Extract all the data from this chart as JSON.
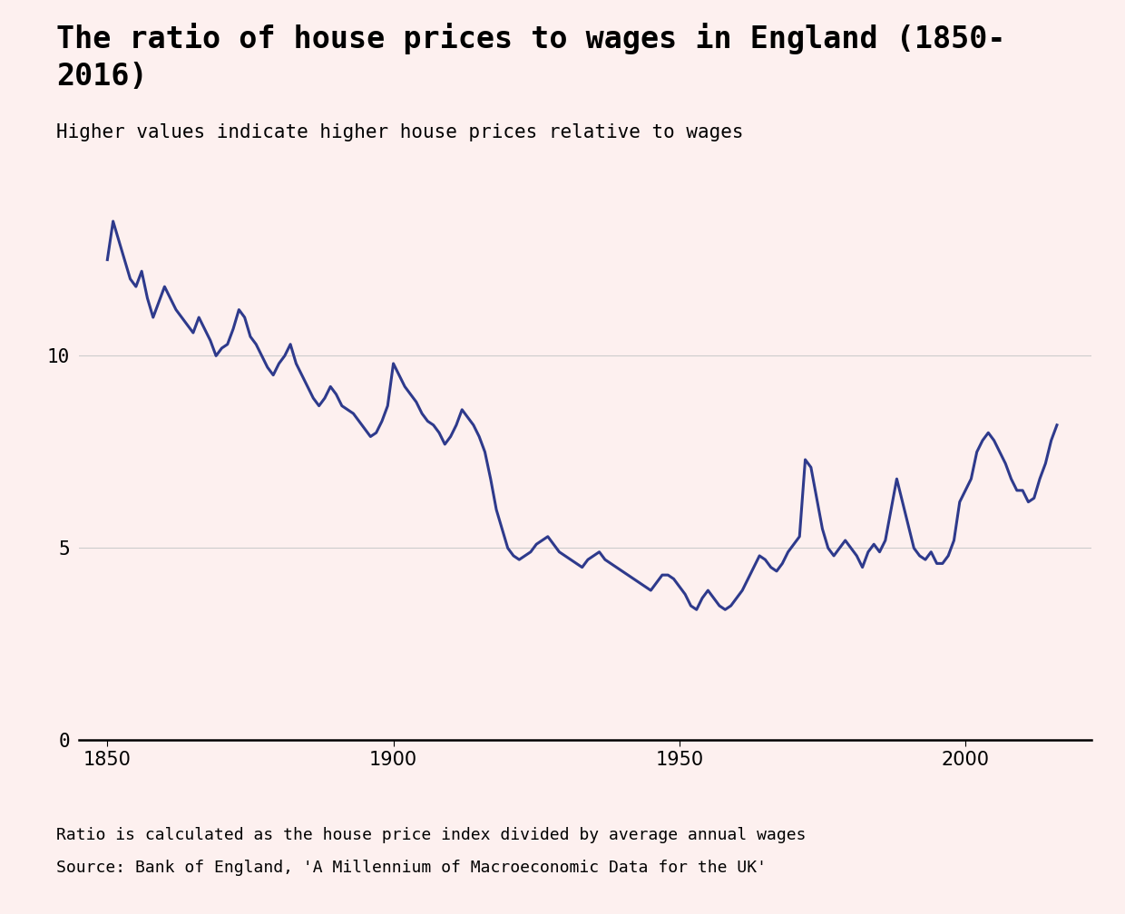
{
  "title": "The ratio of house prices to wages in England (1850-\n2016)",
  "subtitle": "Higher values indicate higher house prices relative to wages",
  "footnote1": "Ratio is calculated as the house price index divided by average annual wages",
  "footnote2": "Source: Bank of England, 'A Millennium of Macroeconomic Data for the UK'",
  "line_color": "#2E3A8C",
  "background_color": "#FDF0EF",
  "grid_color": "#CCCCCC",
  "title_fontsize": 24,
  "subtitle_fontsize": 15,
  "footnote_fontsize": 13,
  "tick_fontsize": 15,
  "line_width": 2.2,
  "xlim": [
    1845,
    2022
  ],
  "ylim": [
    0,
    14.5
  ],
  "yticks": [
    0,
    5,
    10
  ],
  "xticks": [
    1850,
    1900,
    1950,
    2000
  ],
  "years": [
    1850,
    1851,
    1852,
    1853,
    1854,
    1855,
    1856,
    1857,
    1858,
    1859,
    1860,
    1861,
    1862,
    1863,
    1864,
    1865,
    1866,
    1867,
    1868,
    1869,
    1870,
    1871,
    1872,
    1873,
    1874,
    1875,
    1876,
    1877,
    1878,
    1879,
    1880,
    1881,
    1882,
    1883,
    1884,
    1885,
    1886,
    1887,
    1888,
    1889,
    1890,
    1891,
    1892,
    1893,
    1894,
    1895,
    1896,
    1897,
    1898,
    1899,
    1900,
    1901,
    1902,
    1903,
    1904,
    1905,
    1906,
    1907,
    1908,
    1909,
    1910,
    1911,
    1912,
    1913,
    1914,
    1915,
    1916,
    1917,
    1918,
    1919,
    1920,
    1921,
    1922,
    1923,
    1924,
    1925,
    1926,
    1927,
    1928,
    1929,
    1930,
    1931,
    1932,
    1933,
    1934,
    1935,
    1936,
    1937,
    1938,
    1939,
    1940,
    1941,
    1942,
    1943,
    1944,
    1945,
    1946,
    1947,
    1948,
    1949,
    1950,
    1951,
    1952,
    1953,
    1954,
    1955,
    1956,
    1957,
    1958,
    1959,
    1960,
    1961,
    1962,
    1963,
    1964,
    1965,
    1966,
    1967,
    1968,
    1969,
    1970,
    1971,
    1972,
    1973,
    1974,
    1975,
    1976,
    1977,
    1978,
    1979,
    1980,
    1981,
    1982,
    1983,
    1984,
    1985,
    1986,
    1987,
    1988,
    1989,
    1990,
    1991,
    1992,
    1993,
    1994,
    1995,
    1996,
    1997,
    1998,
    1999,
    2000,
    2001,
    2002,
    2003,
    2004,
    2005,
    2006,
    2007,
    2008,
    2009,
    2010,
    2011,
    2012,
    2013,
    2014,
    2015,
    2016
  ],
  "values": [
    12.5,
    13.5,
    13.0,
    12.5,
    12.0,
    11.8,
    12.2,
    11.5,
    11.0,
    11.4,
    11.8,
    11.5,
    11.2,
    11.0,
    10.8,
    10.6,
    11.0,
    10.7,
    10.4,
    10.0,
    10.2,
    10.3,
    10.7,
    11.2,
    11.0,
    10.5,
    10.3,
    10.0,
    9.7,
    9.5,
    9.8,
    10.0,
    10.3,
    9.8,
    9.5,
    9.2,
    8.9,
    8.7,
    8.9,
    9.2,
    9.0,
    8.7,
    8.6,
    8.5,
    8.3,
    8.1,
    7.9,
    8.0,
    8.3,
    8.7,
    9.8,
    9.5,
    9.2,
    9.0,
    8.8,
    8.5,
    8.3,
    8.2,
    8.0,
    7.7,
    7.9,
    8.2,
    8.6,
    8.4,
    8.2,
    7.9,
    7.5,
    6.8,
    6.0,
    5.5,
    5.0,
    4.8,
    4.7,
    4.8,
    4.9,
    5.1,
    5.2,
    5.3,
    5.1,
    4.9,
    4.8,
    4.7,
    4.6,
    4.5,
    4.7,
    4.8,
    4.9,
    4.7,
    4.6,
    4.5,
    4.4,
    4.3,
    4.2,
    4.1,
    4.0,
    3.9,
    4.1,
    4.3,
    4.3,
    4.2,
    4.0,
    3.8,
    3.5,
    3.4,
    3.7,
    3.9,
    3.7,
    3.5,
    3.4,
    3.5,
    3.7,
    3.9,
    4.2,
    4.5,
    4.8,
    4.7,
    4.5,
    4.4,
    4.6,
    4.9,
    5.1,
    5.3,
    7.3,
    7.1,
    6.3,
    5.5,
    5.0,
    4.8,
    5.0,
    5.2,
    5.0,
    4.8,
    4.5,
    4.9,
    5.1,
    4.9,
    5.2,
    6.0,
    6.8,
    6.2,
    5.6,
    5.0,
    4.8,
    4.7,
    4.9,
    4.6,
    4.6,
    4.8,
    5.2,
    6.2,
    6.5,
    6.8,
    7.5,
    7.8,
    8.0,
    7.8,
    7.5,
    7.2,
    6.8,
    6.5,
    6.5,
    6.2,
    6.3,
    6.8,
    7.2,
    7.8,
    8.2
  ]
}
